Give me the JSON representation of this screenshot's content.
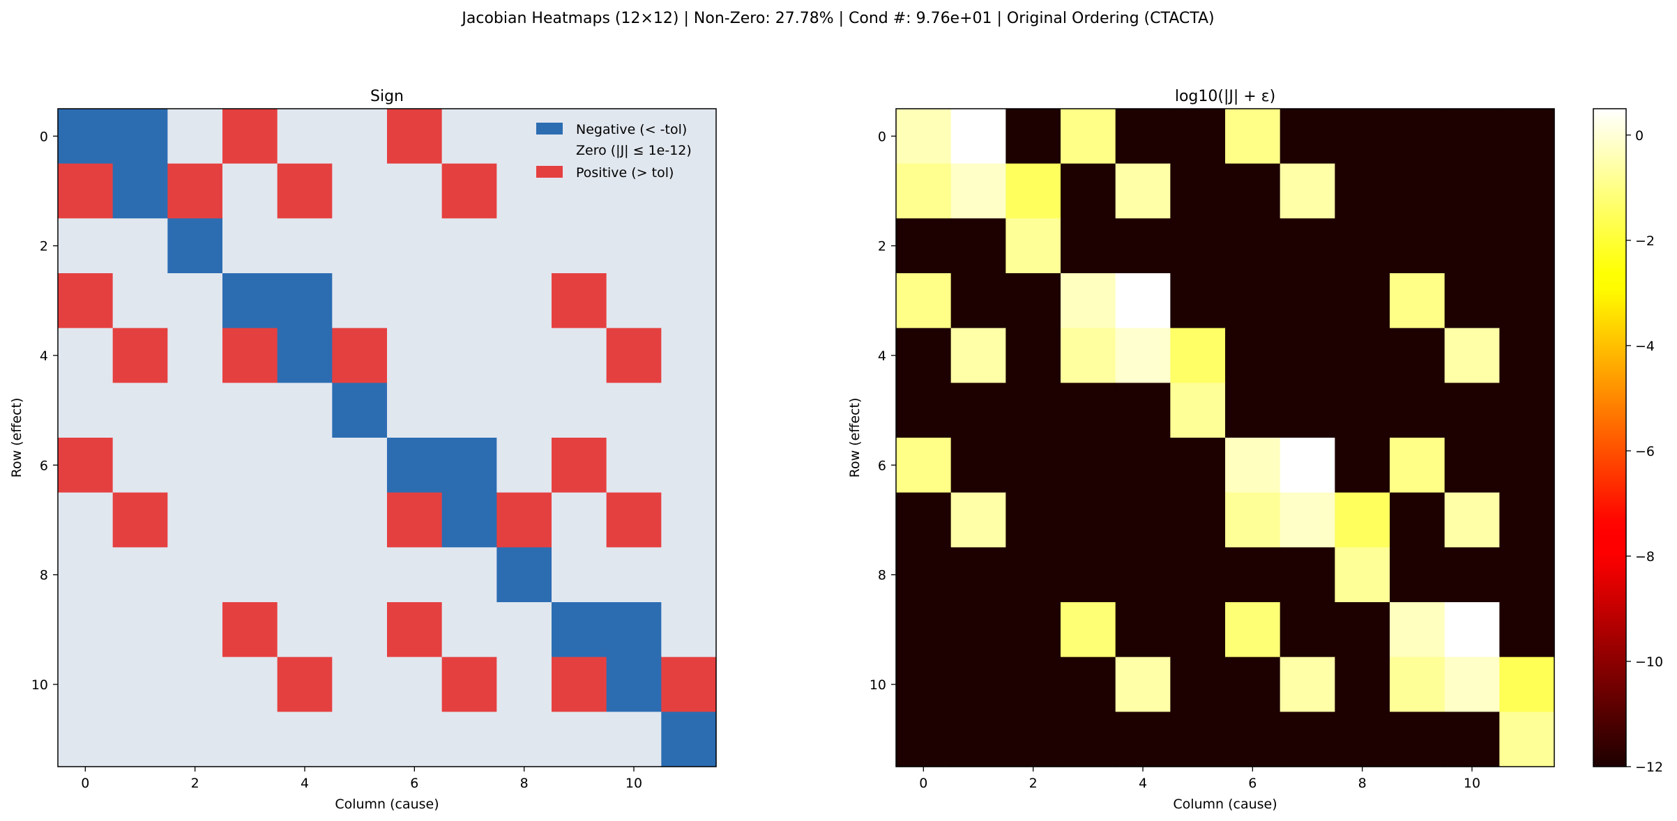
{
  "suptitle": "Jacobian Heatmaps (12×12) | Non-Zero: 27.78% | Cond #: 9.76e+01 | Original Ordering (CTACTA)",
  "chart_data": [
    {
      "type": "heatmap",
      "title": "Sign",
      "xlabel": "Column (cause)",
      "ylabel": "Row (effect)",
      "xticks": [
        0,
        2,
        4,
        6,
        8,
        10
      ],
      "yticks": [
        0,
        2,
        4,
        6,
        8,
        10
      ],
      "legend": [
        {
          "label": "Negative (< -tol)",
          "color": "#2c6db2",
          "swatch": true
        },
        {
          "label": "Zero (|J| ≤ 1e-12)",
          "color": "#e1e7ef",
          "swatch": false
        },
        {
          "label": "Positive (> tol)",
          "color": "#e54040",
          "swatch": true
        }
      ],
      "legend_loc": "upper right",
      "colors": {
        "-1": "#2c6db2",
        "0": "#e1e7ef",
        "1": "#e54040"
      },
      "matrix": [
        [
          -1,
          -1,
          0,
          1,
          0,
          0,
          1,
          0,
          0,
          0,
          0,
          0
        ],
        [
          1,
          -1,
          1,
          0,
          1,
          0,
          0,
          1,
          0,
          0,
          0,
          0
        ],
        [
          0,
          0,
          -1,
          0,
          0,
          0,
          0,
          0,
          0,
          0,
          0,
          0
        ],
        [
          1,
          0,
          0,
          -1,
          -1,
          0,
          0,
          0,
          0,
          1,
          0,
          0
        ],
        [
          0,
          1,
          0,
          1,
          -1,
          1,
          0,
          0,
          0,
          0,
          1,
          0
        ],
        [
          0,
          0,
          0,
          0,
          0,
          -1,
          0,
          0,
          0,
          0,
          0,
          0
        ],
        [
          1,
          0,
          0,
          0,
          0,
          0,
          -1,
          -1,
          0,
          1,
          0,
          0
        ],
        [
          0,
          1,
          0,
          0,
          0,
          0,
          1,
          -1,
          1,
          0,
          1,
          0
        ],
        [
          0,
          0,
          0,
          0,
          0,
          0,
          0,
          0,
          -1,
          0,
          0,
          0
        ],
        [
          0,
          0,
          0,
          1,
          0,
          0,
          1,
          0,
          0,
          -1,
          -1,
          0
        ],
        [
          0,
          0,
          0,
          0,
          1,
          0,
          0,
          1,
          0,
          1,
          -1,
          1
        ],
        [
          0,
          0,
          0,
          0,
          0,
          0,
          0,
          0,
          0,
          0,
          0,
          -1
        ]
      ]
    },
    {
      "type": "heatmap",
      "title": "log10(|J| + ε)",
      "xlabel": "Column (cause)",
      "ylabel": "Row (effect)",
      "xticks": [
        0,
        2,
        4,
        6,
        8,
        10
      ],
      "yticks": [
        0,
        2,
        4,
        6,
        8,
        10
      ],
      "colormap": "hot",
      "vmin": -12,
      "vmax": 0.5,
      "colorbar_ticks": [
        0,
        -2,
        -4,
        -6,
        -8,
        -10,
        -12
      ],
      "colorbar_tick_labels": [
        "0",
        "−2",
        "−4",
        "−6",
        "−8",
        "−10",
        "−12"
      ],
      "matrix": [
        [
          -0.4,
          0.5,
          -12,
          -1.0,
          -12,
          -12,
          -1.0,
          -12,
          -12,
          -12,
          -12,
          -12
        ],
        [
          -0.9,
          -0.2,
          -1.5,
          -12,
          -0.6,
          -12,
          -12,
          -0.6,
          -12,
          -12,
          -12,
          -12
        ],
        [
          -12,
          -12,
          -0.8,
          -12,
          -12,
          -12,
          -12,
          -12,
          -12,
          -12,
          -12,
          -12
        ],
        [
          -1.0,
          -12,
          -12,
          -0.3,
          0.5,
          -12,
          -12,
          -12,
          -12,
          -1.0,
          -12,
          -12
        ],
        [
          -12,
          -0.6,
          -12,
          -0.7,
          -0.1,
          -1.4,
          -12,
          -12,
          -12,
          -12,
          -0.6,
          -12
        ],
        [
          -12,
          -12,
          -12,
          -12,
          -12,
          -0.8,
          -12,
          -12,
          -12,
          -12,
          -12,
          -12
        ],
        [
          -1.0,
          -12,
          -12,
          -12,
          -12,
          -12,
          -0.3,
          0.5,
          -12,
          -1.0,
          -12,
          -12
        ],
        [
          -12,
          -0.6,
          -12,
          -12,
          -12,
          -12,
          -0.8,
          -0.2,
          -1.5,
          -12,
          -0.6,
          -12
        ],
        [
          -12,
          -12,
          -12,
          -12,
          -12,
          -12,
          -12,
          -12,
          -0.8,
          -12,
          -12,
          -12
        ],
        [
          -12,
          -12,
          -12,
          -1.2,
          -12,
          -12,
          -1.2,
          -12,
          -12,
          -0.3,
          0.5,
          -12
        ],
        [
          -12,
          -12,
          -12,
          -12,
          -0.6,
          -12,
          -12,
          -0.6,
          -12,
          -0.8,
          -0.2,
          -1.6
        ],
        [
          -12,
          -12,
          -12,
          -12,
          -12,
          -12,
          -12,
          -12,
          -12,
          -12,
          -12,
          -0.8
        ]
      ]
    }
  ]
}
